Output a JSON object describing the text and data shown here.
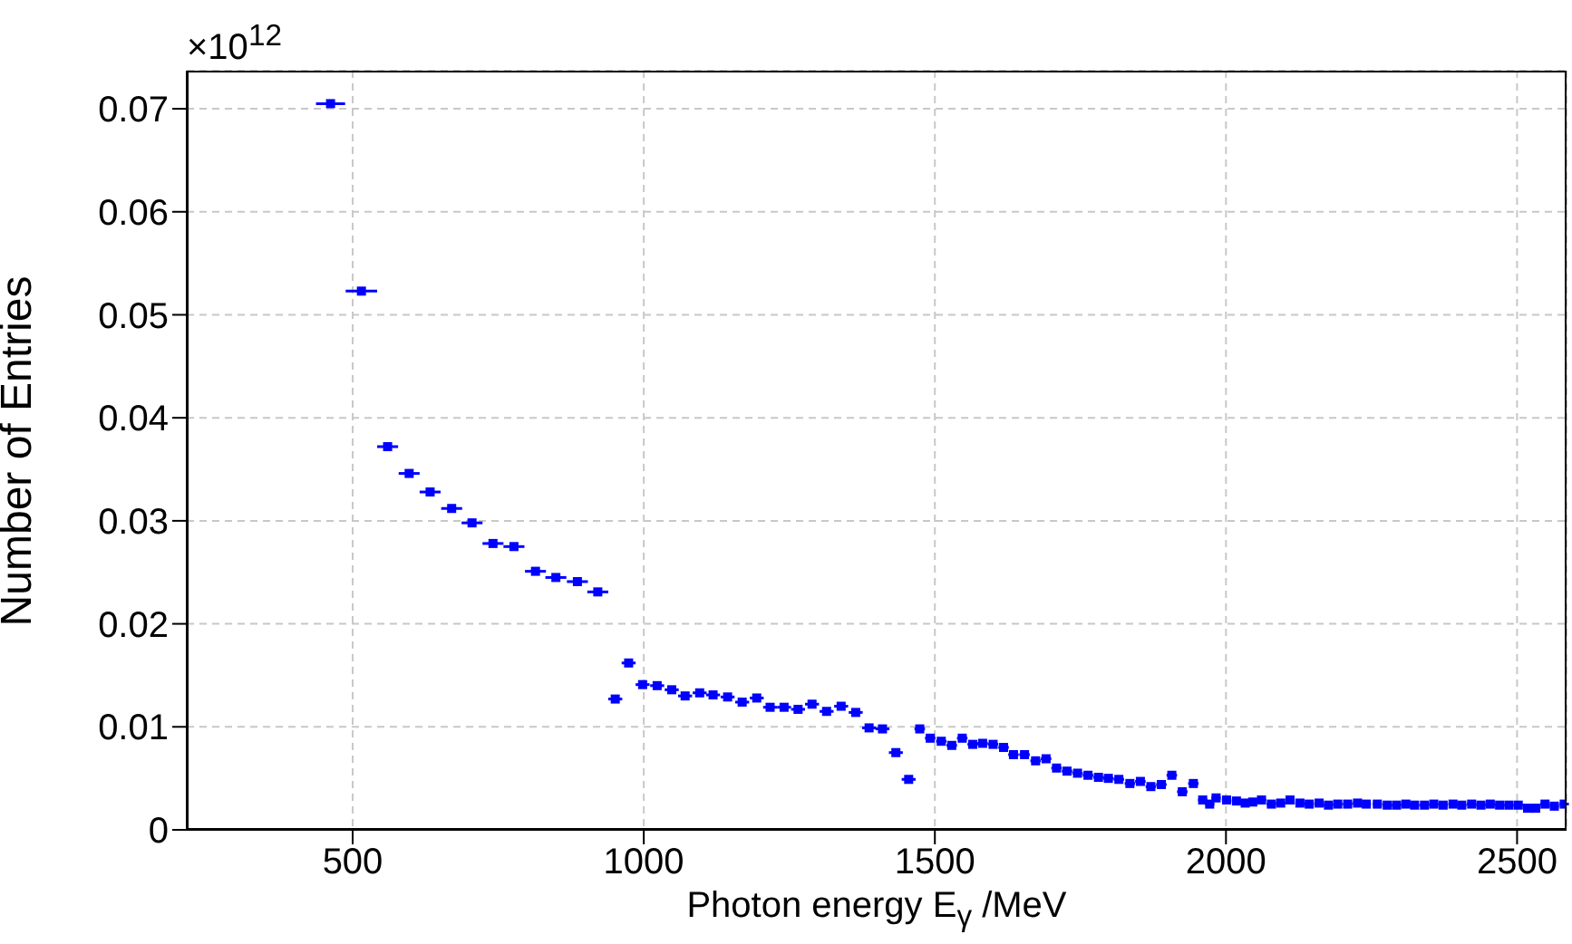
{
  "chart_data": {
    "type": "scatter",
    "xlabel": "Photon energy E$_{γ}$ /MeV",
    "ylabel": "Number of Entries",
    "annotations": [
      "×10$^{12}$"
    ],
    "xlim": [
      215,
      2585
    ],
    "xticks": [
      500,
      1000,
      1500,
      2000,
      2500
    ],
    "ylim": [
      0,
      0.0737
    ],
    "yticks": [
      0,
      0.01,
      0.02,
      0.03,
      0.04,
      0.05,
      0.06,
      0.07
    ],
    "grid": true,
    "marker": "square",
    "series": [
      {
        "color": "#0000ff",
        "x": [
          462,
          515,
          560,
          597,
          633,
          670,
          705,
          741,
          777,
          814,
          849,
          886,
          921,
          951,
          974,
          998,
          1023,
          1048,
          1071,
          1096,
          1119,
          1144,
          1169,
          1194,
          1217,
          1241,
          1265,
          1289,
          1314,
          1339,
          1364,
          1387,
          1410,
          1433,
          1455,
          1474,
          1492,
          1511,
          1529,
          1547,
          1565,
          1582,
          1600,
          1618,
          1635,
          1654,
          1673,
          1691,
          1709,
          1727,
          1745,
          1763,
          1781,
          1798,
          1816,
          1835,
          1853,
          1871,
          1889,
          1907,
          1925,
          1944,
          1960,
          1972,
          1983,
          2001,
          2018,
          2033,
          2046,
          2061,
          2078,
          2094,
          2110,
          2127,
          2143,
          2160,
          2176,
          2192,
          2209,
          2226,
          2241,
          2260,
          2277,
          2293,
          2309,
          2324,
          2341,
          2357,
          2373,
          2390,
          2405,
          2422,
          2438,
          2454,
          2470,
          2486,
          2502,
          2518,
          2532,
          2548,
          2564,
          2581
        ],
        "values": [
          0.0705,
          0.0523,
          0.0372,
          0.0346,
          0.0328,
          0.0312,
          0.0298,
          0.0278,
          0.0275,
          0.0251,
          0.0245,
          0.0241,
          0.0231,
          0.0127,
          0.0162,
          0.0141,
          0.014,
          0.0136,
          0.013,
          0.0133,
          0.0131,
          0.0129,
          0.0124,
          0.0128,
          0.0119,
          0.0119,
          0.0117,
          0.0122,
          0.0115,
          0.012,
          0.0114,
          0.0099,
          0.0098,
          0.0075,
          0.0049,
          0.0098,
          0.0089,
          0.0086,
          0.0082,
          0.0089,
          0.0083,
          0.0084,
          0.0083,
          0.008,
          0.0073,
          0.0073,
          0.0067,
          0.0069,
          0.006,
          0.0057,
          0.0055,
          0.0053,
          0.0051,
          0.005,
          0.0049,
          0.0045,
          0.0047,
          0.0042,
          0.0044,
          0.0053,
          0.0037,
          0.0045,
          0.0029,
          0.0025,
          0.0031,
          0.0029,
          0.0028,
          0.0026,
          0.0027,
          0.0029,
          0.0025,
          0.0026,
          0.0029,
          0.0026,
          0.0025,
          0.0026,
          0.0024,
          0.0025,
          0.0025,
          0.0026,
          0.0025,
          0.0025,
          0.0024,
          0.0024,
          0.0025,
          0.0024,
          0.0024,
          0.0025,
          0.0024,
          0.0025,
          0.0024,
          0.0025,
          0.0024,
          0.0025,
          0.0024,
          0.0024,
          0.0024,
          0.0021,
          0.0021,
          0.0025,
          0.0023,
          0.0025
        ],
        "xerrors": [
          25,
          27,
          18,
          18,
          18,
          18,
          18,
          18,
          18,
          18,
          18,
          18,
          18,
          12,
          12,
          12,
          12,
          12,
          12,
          12,
          12,
          12,
          12,
          12,
          12,
          12,
          12,
          12,
          12,
          12,
          12,
          12,
          12,
          12,
          12,
          9,
          9,
          9,
          9,
          9,
          9,
          9,
          9,
          9,
          9,
          9,
          9,
          9,
          9,
          9,
          9,
          9,
          9,
          9,
          9,
          9,
          9,
          9,
          9,
          9,
          9,
          9,
          8,
          8,
          8,
          8,
          8,
          8,
          8,
          8,
          8,
          8,
          8,
          8,
          8,
          8,
          8,
          8,
          8,
          8,
          8,
          8,
          8,
          8,
          8,
          8,
          8,
          8,
          8,
          8,
          8,
          8,
          8,
          8,
          8,
          8,
          8,
          8,
          8,
          8,
          8,
          8
        ]
      }
    ]
  }
}
